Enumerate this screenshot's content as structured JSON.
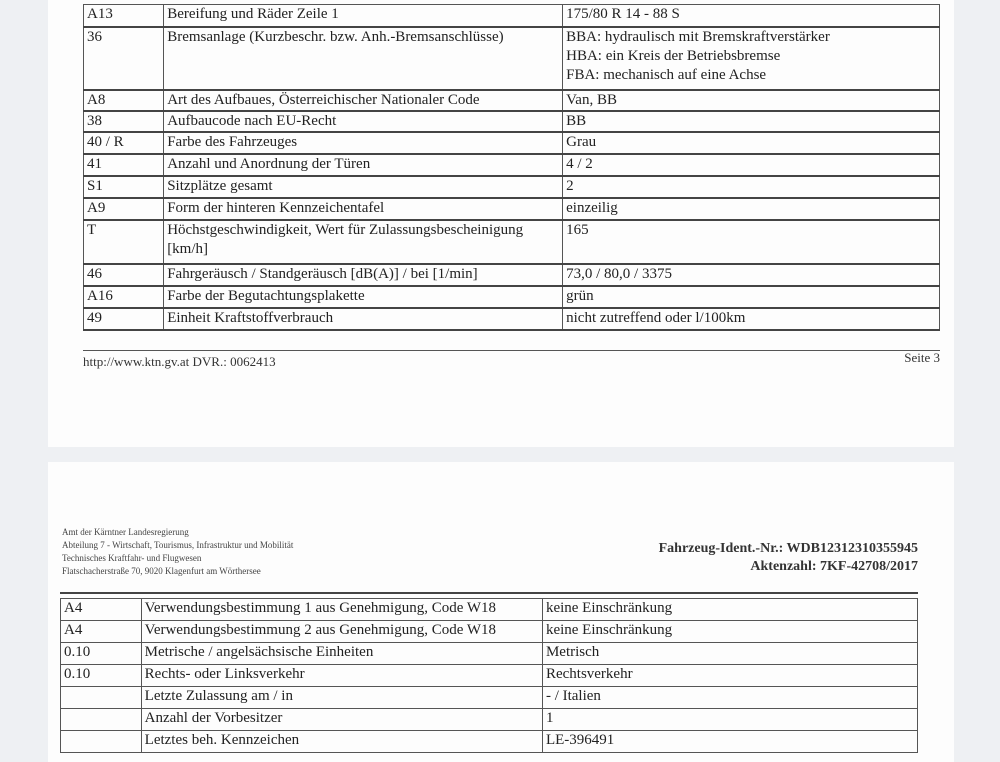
{
  "page1": {
    "rows": [
      {
        "code": "A13",
        "label": "Bereifung und Räder Zeile 1",
        "value": "175/80 R 14 - 88 S"
      },
      {
        "code": "36",
        "label": "Bremsanlage (Kurzbeschr. bzw. Anh.-Bremsanschlüsse)",
        "value": "BBA: hydraulisch mit Bremskraftverstärker\nHBA: ein Kreis der Betriebsbremse\nFBA: mechanisch auf eine Achse"
      },
      {
        "code": "A8",
        "label": "Art des Aufbaues, Österreichischer Nationaler Code",
        "value": "Van, BB"
      },
      {
        "code": "38",
        "label": "Aufbaucode nach EU-Recht",
        "value": "BB"
      },
      {
        "code": "40 / R",
        "label": "Farbe des Fahrzeuges",
        "value": "Grau"
      },
      {
        "code": "41",
        "label": "Anzahl und Anordnung der Türen",
        "value": "4 / 2"
      },
      {
        "code": "S1",
        "label": "Sitzplätze gesamt",
        "value": "2"
      },
      {
        "code": "A9",
        "label": "Form der hinteren Kennzeichentafel",
        "value": "einzeilig"
      },
      {
        "code": "T",
        "label": "Höchstgeschwindigkeit, Wert für Zulassungsbescheinigung [km/h]",
        "value": "165"
      },
      {
        "code": "46",
        "label": "Fahrgeräusch / Standgeräusch [dB(A)] / bei [1/min]",
        "value": "73,0 / 80,0 / 3375"
      },
      {
        "code": "A16",
        "label": "Farbe der Begutachtungsplakette",
        "value": "grün"
      },
      {
        "code": "49",
        "label": "Einheit Kraftstoffverbrauch",
        "value": "nicht zutreffend oder l/100km"
      }
    ],
    "footer_left": "http://www.ktn.gv.at   DVR.: 0062413",
    "footer_right": "Seite 3"
  },
  "page2": {
    "header_lines": [
      "Amt der Kärntner Landesregierung",
      "Abteilung 7 - Wirtschaft, Tourismus, Infrastruktur und Mobilität",
      "Technisches Kraftfahr- und Flugwesen",
      "Flatschacherstraße 70, 9020 Klagenfurt am Wörthersee"
    ],
    "ident": "Fahrzeug-Ident.-Nr.: WDB12312310355945",
    "aktenzahl": "Aktenzahl: 7KF-42708/2017",
    "rows": [
      {
        "code": "A4",
        "label": "Verwendungsbestimmung 1 aus Genehmigung, Code W18",
        "value": "keine Einschränkung"
      },
      {
        "code": "A4",
        "label": "Verwendungsbestimmung 2 aus Genehmigung, Code W18",
        "value": "keine Einschränkung"
      },
      {
        "code": "0.10",
        "label": "Metrische / angelsächsische Einheiten",
        "value": "Metrisch"
      },
      {
        "code": "0.10",
        "label": "Rechts- oder Linksverkehr",
        "value": "Rechtsverkehr"
      },
      {
        "code": "",
        "label": "Letzte Zulassung am / in",
        "value": "- / Italien"
      },
      {
        "code": "",
        "label": "Anzahl der Vorbesitzer",
        "value": "1"
      },
      {
        "code": "",
        "label": "Letztes beh. Kennzeichen",
        "value": "LE-396491"
      }
    ]
  }
}
